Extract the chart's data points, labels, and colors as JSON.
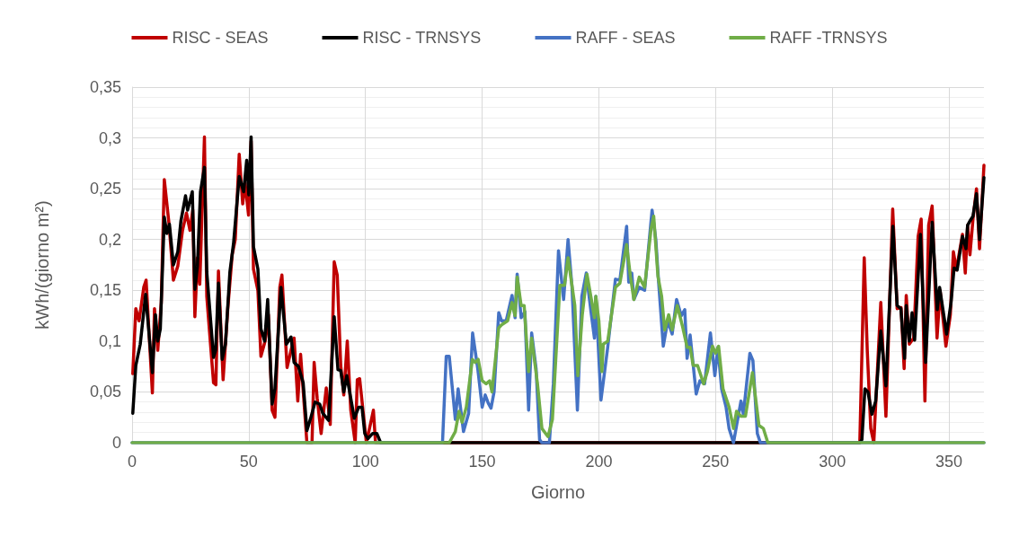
{
  "chart_data": {
    "type": "line",
    "xlabel": "Giorno",
    "ylabel": "kWh/(giorno m²)",
    "xlim": [
      0,
      365
    ],
    "xticks": [
      0,
      50,
      100,
      150,
      200,
      250,
      300,
      350
    ],
    "ylim": [
      0,
      0.35
    ],
    "yticks": [
      0,
      {
        "value": 0.05,
        "label": "0,05"
      },
      {
        "value": 0.1,
        "label": "0,1"
      },
      {
        "value": 0.15,
        "label": "0,15"
      },
      {
        "value": 0.2,
        "label": "0,2"
      },
      {
        "value": 0.25,
        "label": "0,25"
      },
      {
        "value": 0.3,
        "label": "0,3"
      },
      {
        "value": 0.35,
        "label": "0,35"
      }
    ],
    "grid": true,
    "legend": "top",
    "marker": "none",
    "line_style": "solid",
    "series": [
      {
        "name": "RISC - SEAS",
        "color": "#c00000",
        "x": [
          0.3,
          1.6,
          3,
          5,
          6,
          8.7,
          9.6,
          11,
          12.5,
          13.8,
          15.8,
          17.7,
          19.6,
          21.6,
          23.3,
          24.8,
          26,
          26.9,
          28,
          29,
          31,
          32,
          34.9,
          35.9,
          37,
          39,
          41,
          42.9,
          44.2,
          45.9,
          47.4,
          48.4,
          49.9,
          51,
          52,
          53.9,
          55.2,
          57,
          58.4,
          60,
          61.2,
          63.3,
          64.2,
          66.4,
          68.1,
          69.4,
          71,
          72.2,
          74.9,
          77.1,
          78,
          79.3,
          81,
          83.2,
          84.9,
          86.6,
          87.9,
          89.4,
          90.7,
          92.2,
          93.7,
          95.6,
          96.5,
          97.5,
          100.4,
          103.4,
          104.3,
          311.8,
          313.7,
          315,
          316.5,
          317.8,
          320.8,
          323,
          325.9,
          327.8,
          329.5,
          330.8,
          331.7,
          333,
          334.9,
          336.8,
          338.1,
          339.7,
          341.3,
          342.8,
          344.9,
          346.2,
          348.7,
          350.6,
          351.9,
          353.2,
          355.8,
          357,
          358,
          359,
          360.3,
          361.8,
          363.1,
          365
        ],
        "values": [
          0.068,
          0.132,
          0.12,
          0.153,
          0.16,
          0.049,
          0.132,
          0.091,
          0.138,
          0.259,
          0.216,
          0.16,
          0.174,
          0.209,
          0.226,
          0.209,
          0.229,
          0.124,
          0.182,
          0.156,
          0.301,
          0.144,
          0.059,
          0.057,
          0.169,
          0.062,
          0.132,
          0.185,
          0.2,
          0.284,
          0.235,
          0.256,
          0.224,
          0.297,
          0.171,
          0.15,
          0.085,
          0.1,
          0.126,
          0.032,
          0.025,
          0.153,
          0.165,
          0.074,
          0.091,
          0.103,
          0.041,
          0.087,
          0,
          0,
          0.079,
          0.044,
          0.009,
          0.054,
          0.018,
          0.178,
          0.165,
          0.076,
          0.047,
          0.1,
          0.032,
          0,
          0.062,
          0.063,
          0,
          0.032,
          0,
          0,
          0.182,
          0.091,
          0.014,
          0,
          0.138,
          0.026,
          0.23,
          0.132,
          0.133,
          0.073,
          0.145,
          0.097,
          0.103,
          0.203,
          0.22,
          0.041,
          0.214,
          0.233,
          0.103,
          0.15,
          0.095,
          0.126,
          0.188,
          0.17,
          0.205,
          0.167,
          0.214,
          0.185,
          0.22,
          0.25,
          0.191,
          0.273
        ]
      },
      {
        "name": "RISC - TRNSYS",
        "color": "#000000",
        "x": [
          0.3,
          1.6,
          3.5,
          5.8,
          8.7,
          10,
          11,
          12.1,
          13.8,
          14.9,
          16,
          17.7,
          19.6,
          20.9,
          22.9,
          23.8,
          25.8,
          26.9,
          28,
          29.3,
          31,
          32,
          34.9,
          35.8,
          37,
          38.6,
          40,
          41.9,
          43.5,
          45.9,
          47.8,
          49.1,
          50,
          51,
          52,
          53.9,
          55.2,
          56.8,
          58.1,
          60,
          61.2,
          63.8,
          66.1,
          68.1,
          69.4,
          71.3,
          73.3,
          74.9,
          76.5,
          78.4,
          80.4,
          81.7,
          84.2,
          86.6,
          88.2,
          89.4,
          90.7,
          92,
          95.2,
          97.1,
          98.5,
          99.7,
          101,
          103,
          104.9,
          106.5,
          311.8,
          312.7,
          314,
          315.3,
          317,
          318.6,
          320.8,
          323,
          326,
          327.8,
          329.4,
          331,
          331.7,
          333,
          334.2,
          335.3,
          337.8,
          340,
          342.8,
          345,
          346,
          349,
          350.9,
          352.2,
          353.5,
          355.8,
          357.3,
          358,
          359.2,
          360.3,
          361.8,
          363.1,
          365
        ],
        "values": [
          0.029,
          0.076,
          0.097,
          0.146,
          0.069,
          0.126,
          0.1,
          0.112,
          0.222,
          0.206,
          0.215,
          0.175,
          0.188,
          0.218,
          0.243,
          0.229,
          0.247,
          0.151,
          0.174,
          0.247,
          0.271,
          0.168,
          0.084,
          0.091,
          0.157,
          0.082,
          0.097,
          0.168,
          0.197,
          0.262,
          0.247,
          0.278,
          0.244,
          0.301,
          0.193,
          0.171,
          0.112,
          0.1,
          0.141,
          0.038,
          0.053,
          0.153,
          0.097,
          0.104,
          0.079,
          0.075,
          0.059,
          0.012,
          0.024,
          0.04,
          0.038,
          0.029,
          0.022,
          0.124,
          0.072,
          0.071,
          0.05,
          0.066,
          0.024,
          0.035,
          0.035,
          0.009,
          0.004,
          0.009,
          0.009,
          0,
          0,
          0.003,
          0.053,
          0.05,
          0.028,
          0.041,
          0.11,
          0.056,
          0.213,
          0.135,
          0.132,
          0.083,
          0.135,
          0.1,
          0.128,
          0.101,
          0.205,
          0.079,
          0.217,
          0.131,
          0.153,
          0.107,
          0.138,
          0.172,
          0.17,
          0.203,
          0.191,
          0.214,
          0.219,
          0.223,
          0.245,
          0.2,
          0.261
        ]
      },
      {
        "name": "RAFF - SEAS",
        "color": "#4472c4",
        "x": [
          0,
          133,
          134.6,
          135.9,
          138.5,
          139.7,
          142,
          144.2,
          145.9,
          148.1,
          150,
          151.3,
          152.6,
          153.8,
          155.1,
          157.1,
          158.3,
          160.3,
          162.8,
          164.1,
          165,
          166.7,
          168.3,
          169.9,
          171.2,
          173.1,
          174.6,
          175.6,
          178.8,
          180.5,
          182.7,
          184.9,
          186.8,
          188.5,
          190.8,
          192.7,
          194.6,
          196.8,
          198.1,
          198.7,
          200.9,
          203.8,
          207.1,
          209,
          211.9,
          212.8,
          214.1,
          215,
          217.3,
          219.6,
          222.8,
          224.4,
          225.6,
          227.6,
          229.5,
          231.4,
          233.3,
          235.3,
          236.8,
          237.8,
          239.1,
          241.7,
          243.3,
          245.3,
          247.8,
          249.7,
          251,
          252.6,
          254.5,
          255.8,
          257.7,
          259,
          260.9,
          261.9,
          264.7,
          266,
          267.9,
          269.2,
          365
        ],
        "values": [
          0,
          0,
          0.085,
          0.085,
          0.023,
          0.053,
          0.011,
          0.029,
          0.108,
          0.073,
          0.035,
          0.047,
          0.039,
          0.034,
          0.05,
          0.128,
          0.12,
          0.12,
          0.145,
          0.123,
          0.166,
          0.123,
          0.129,
          0.032,
          0.108,
          0.073,
          0.003,
          0,
          0,
          0.058,
          0.189,
          0.141,
          0.2,
          0.153,
          0.032,
          0.144,
          0.167,
          0.126,
          0.103,
          0.144,
          0.042,
          0.094,
          0.161,
          0.16,
          0.213,
          0.158,
          0.167,
          0.141,
          0.153,
          0.15,
          0.229,
          0.2,
          0.158,
          0.095,
          0.12,
          0.107,
          0.141,
          0.125,
          0.131,
          0.083,
          0.106,
          0.048,
          0.061,
          0.058,
          0.108,
          0.066,
          0.094,
          0.053,
          0.035,
          0.014,
          0,
          0.017,
          0.041,
          0.028,
          0.088,
          0.081,
          0.009,
          0,
          0
        ]
      },
      {
        "name": "RAFF -TRNSYS",
        "color": "#70ad47",
        "x": [
          0,
          135.9,
          138.5,
          140.1,
          141.4,
          143.2,
          145.8,
          147,
          148.3,
          150,
          151.7,
          153.2,
          154.2,
          157.1,
          158.3,
          160.9,
          162.8,
          164.1,
          165,
          166.7,
          168,
          169.9,
          171.2,
          173.7,
          175.6,
          178.2,
          180.1,
          183.3,
          185.3,
          186.8,
          189.7,
          191,
          192.9,
          194.9,
          196.8,
          198.1,
          198.7,
          200,
          201.3,
          201.9,
          203.8,
          207.1,
          209,
          211.9,
          213.5,
          215,
          217.3,
          219.6,
          222.4,
          223.5,
          225.3,
          226.9,
          228.2,
          229.9,
          231.4,
          233.6,
          235.9,
          237.8,
          239.1,
          240.4,
          242.3,
          244.9,
          246.5,
          248.7,
          250,
          251.3,
          253.2,
          255.8,
          257.7,
          259,
          260.9,
          262.8,
          265.8,
          268.6,
          270.5,
          272.4,
          365
        ],
        "values": [
          0,
          0,
          0.011,
          0.031,
          0.02,
          0.035,
          0.082,
          0.079,
          0.082,
          0.061,
          0.058,
          0.061,
          0.05,
          0.113,
          0.116,
          0.12,
          0.138,
          0.125,
          0.163,
          0.135,
          0.135,
          0.07,
          0.103,
          0.058,
          0.014,
          0.006,
          0.023,
          0.155,
          0.155,
          0.182,
          0.135,
          0.066,
          0.126,
          0.166,
          0.141,
          0.123,
          0.144,
          0.12,
          0.07,
          0.097,
          0.1,
          0.153,
          0.157,
          0.195,
          0.164,
          0.141,
          0.163,
          0.153,
          0.211,
          0.223,
          0.164,
          0.144,
          0.111,
          0.126,
          0.111,
          0.135,
          0.114,
          0.094,
          0.094,
          0.076,
          0.076,
          0.058,
          0.07,
          0.095,
          0.088,
          0.095,
          0.053,
          0.035,
          0.014,
          0.031,
          0.026,
          0.026,
          0.069,
          0.017,
          0.014,
          0,
          0
        ]
      }
    ]
  }
}
